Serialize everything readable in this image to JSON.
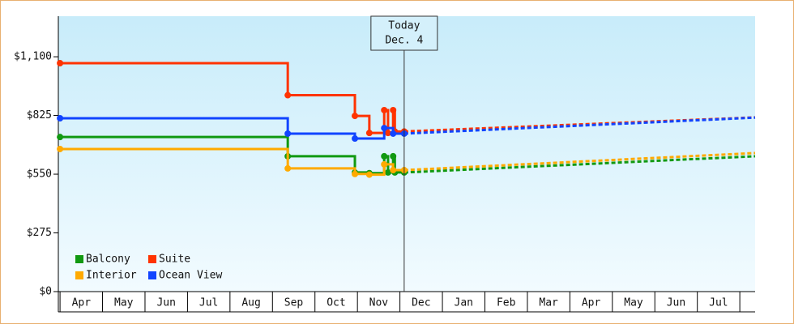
{
  "chart_data": {
    "type": "step-line",
    "xlim": [
      -0.04,
      16.36
    ],
    "ylim": [
      0,
      1290
    ],
    "xticks": [
      {
        "value": 0.5,
        "label": "Apr"
      },
      {
        "value": 1.5,
        "label": "May"
      },
      {
        "value": 2.5,
        "label": "Jun"
      },
      {
        "value": 3.5,
        "label": "Jul"
      },
      {
        "value": 4.5,
        "label": "Aug"
      },
      {
        "value": 5.5,
        "label": "Sep"
      },
      {
        "value": 6.5,
        "label": "Oct"
      },
      {
        "value": 7.5,
        "label": "Nov"
      },
      {
        "value": 8.5,
        "label": "Dec"
      },
      {
        "value": 9.5,
        "label": "Jan"
      },
      {
        "value": 10.5,
        "label": "Feb"
      },
      {
        "value": 11.5,
        "label": "Mar"
      },
      {
        "value": 12.5,
        "label": "Apr"
      },
      {
        "value": 13.5,
        "label": "May"
      },
      {
        "value": 14.5,
        "label": "Jun"
      },
      {
        "value": 15.5,
        "label": "Jul"
      }
    ],
    "yticks": [
      {
        "value": 0,
        "label": "$0"
      },
      {
        "value": 275,
        "label": "$275"
      },
      {
        "value": 550,
        "label": "$550"
      },
      {
        "value": 825,
        "label": "$825"
      },
      {
        "value": 1100,
        "label": "$1,100"
      }
    ],
    "today": {
      "x": 8.1,
      "label": [
        "Today",
        "Dec. 4"
      ]
    },
    "legend": "lower left",
    "series": [
      {
        "name": "Balcony",
        "color": "#119911",
        "x": [
          0,
          5.36,
          6.94,
          7.28,
          7.63,
          7.72,
          7.84,
          7.88,
          8.1
        ],
        "values": [
          724,
          634,
          558,
          555,
          634,
          558,
          634,
          558,
          558
        ],
        "forecast": {
          "x": [
            8.1,
            16.36
          ],
          "values": [
            558,
            634
          ]
        }
      },
      {
        "name": "Suite",
        "color": "#ff3300",
        "x": [
          0,
          5.36,
          6.94,
          7.28,
          7.63,
          7.72,
          7.84,
          7.88,
          8.1
        ],
        "values": [
          1070,
          920,
          823,
          743,
          850,
          743,
          850,
          750,
          750
        ],
        "forecast": {
          "x": [
            8.1,
            16.36
          ],
          "values": [
            750,
            816
          ]
        }
      },
      {
        "name": "Interior",
        "color": "#ffaa00",
        "x": [
          0,
          5.36,
          6.94,
          7.28,
          7.63,
          7.84,
          8.1
        ],
        "values": [
          668,
          577,
          551,
          548,
          596,
          569,
          569
        ],
        "forecast": {
          "x": [
            8.1,
            16.36
          ],
          "values": [
            569,
            649
          ]
        }
      },
      {
        "name": "Ocean View",
        "color": "#1144ff",
        "x": [
          0,
          5.36,
          6.94,
          7.63,
          7.84,
          8.1
        ],
        "values": [
          812,
          740,
          717,
          766,
          740,
          740
        ],
        "forecast": {
          "x": [
            8.1,
            16.36
          ],
          "values": [
            740,
            815
          ]
        }
      }
    ]
  }
}
